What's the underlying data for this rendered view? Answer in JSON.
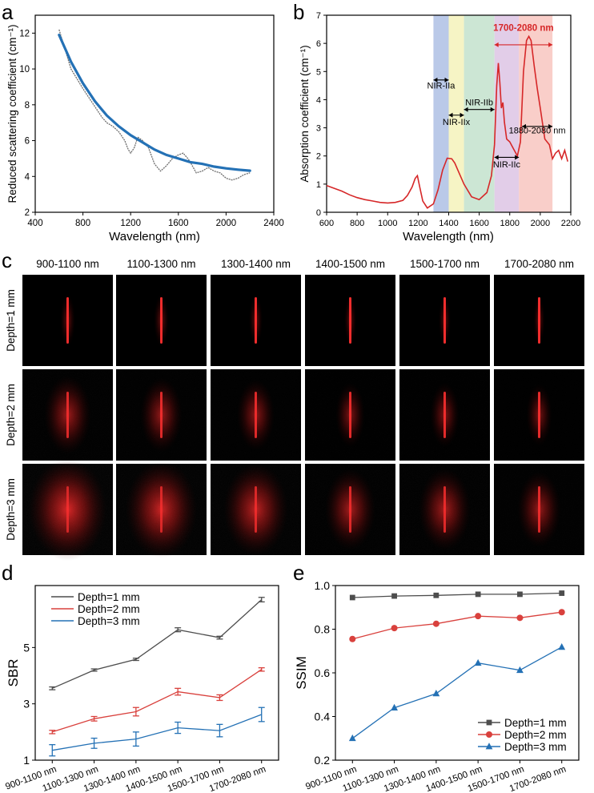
{
  "panel_labels": {
    "a": "a",
    "b": "b",
    "c": "c",
    "d": "d",
    "e": "e"
  },
  "chart_data": [
    {
      "id": "a",
      "type": "line",
      "title": "",
      "xlabel": "Wavelength (nm)",
      "ylabel": "Reduced scattering coefficient (cm⁻¹)",
      "xlim": [
        400,
        2400
      ],
      "ylim": [
        2,
        13
      ],
      "xticks": [
        "400",
        "800",
        "1200",
        "1600",
        "2000",
        "2400"
      ],
      "yticks": [
        "2",
        "4",
        "6",
        "8",
        "10",
        "12"
      ],
      "series": [
        {
          "name": "Measured",
          "color": "#6e6e6e",
          "x": [
            600,
            700,
            800,
            900,
            960,
            1000,
            1050,
            1100,
            1150,
            1180,
            1200,
            1230,
            1260,
            1300,
            1350,
            1400,
            1450,
            1500,
            1550,
            1600,
            1640,
            1680,
            1700,
            1750,
            1800,
            1850,
            1900,
            1950,
            2000,
            2050,
            2100,
            2150,
            2200
          ],
          "y": [
            12.2,
            10.0,
            8.9,
            7.9,
            7.3,
            7.0,
            6.8,
            6.5,
            6.0,
            5.5,
            5.3,
            5.6,
            6.2,
            6.0,
            5.6,
            4.7,
            4.3,
            4.6,
            5.0,
            5.2,
            5.3,
            5.0,
            4.8,
            4.2,
            4.3,
            4.5,
            4.3,
            4.2,
            3.9,
            3.8,
            3.9,
            4.1,
            4.2
          ]
        },
        {
          "name": "Fit",
          "color": "#2471b5",
          "x": [
            600,
            700,
            800,
            900,
            1000,
            1100,
            1200,
            1300,
            1400,
            1500,
            1600,
            1700,
            1800,
            1900,
            2000,
            2100,
            2200
          ],
          "y": [
            11.9,
            10.4,
            9.2,
            8.2,
            7.4,
            6.8,
            6.3,
            5.9,
            5.5,
            5.2,
            5.0,
            4.8,
            4.7,
            4.55,
            4.45,
            4.38,
            4.32
          ]
        }
      ]
    },
    {
      "id": "b",
      "type": "line",
      "title": "",
      "xlabel": "Wavelength (nm)",
      "ylabel": "Absorption coefficient (cm⁻¹)",
      "xlim": [
        600,
        2200
      ],
      "ylim": [
        0,
        7
      ],
      "xticks": [
        "600",
        "800",
        "1000",
        "1200",
        "1400",
        "1600",
        "1800",
        "2000",
        "2200"
      ],
      "yticks": [
        "0",
        "1",
        "2",
        "3",
        "4",
        "5",
        "6",
        "7"
      ],
      "bands": [
        {
          "from": 1300,
          "to": 1400,
          "color": "#b2c3e6"
        },
        {
          "from": 1400,
          "to": 1500,
          "color": "#f5f3bf"
        },
        {
          "from": 1500,
          "to": 1700,
          "color": "#c6e3cf"
        },
        {
          "from": 1700,
          "to": 1860,
          "color": "#dfc8e6"
        },
        {
          "from": 1860,
          "to": 2080,
          "color": "#f8c9c3"
        }
      ],
      "annotations": [
        {
          "text": "NIR-IIa",
          "x": 1350,
          "y": 4.4
        },
        {
          "text": "NIR-IIx",
          "x": 1450,
          "y": 3.1
        },
        {
          "text": "NIR-IIb",
          "x": 1600,
          "y": 3.8
        },
        {
          "text": "NIR-IIc",
          "x": 1780,
          "y": 1.6
        },
        {
          "text": "1700-2080 nm",
          "x": 1890,
          "y": 6.45
        },
        {
          "text": "1880-2080 nm",
          "x": 1980,
          "y": 2.8
        }
      ],
      "series": [
        {
          "name": "Absorption",
          "color": "#d62728",
          "x": [
            600,
            650,
            700,
            750,
            800,
            850,
            900,
            950,
            1000,
            1050,
            1100,
            1130,
            1160,
            1180,
            1195,
            1210,
            1230,
            1260,
            1300,
            1330,
            1360,
            1390,
            1420,
            1440,
            1460,
            1500,
            1550,
            1600,
            1650,
            1680,
            1700,
            1715,
            1725,
            1735,
            1745,
            1755,
            1765,
            1780,
            1800,
            1820,
            1850,
            1870,
            1890,
            1910,
            1925,
            1940,
            1960,
            1980,
            2000,
            2030,
            2060,
            2080,
            2100,
            2120,
            2140,
            2160,
            2180
          ],
          "y": [
            0.95,
            0.85,
            0.75,
            0.62,
            0.52,
            0.45,
            0.4,
            0.35,
            0.33,
            0.35,
            0.42,
            0.6,
            0.9,
            1.2,
            1.3,
            0.9,
            0.4,
            0.15,
            0.3,
            0.8,
            1.5,
            1.92,
            1.9,
            1.75,
            1.5,
            1.0,
            0.55,
            0.45,
            0.7,
            1.3,
            2.4,
            4.5,
            5.3,
            4.6,
            3.7,
            3.9,
            3.2,
            2.6,
            2.5,
            2.3,
            2.0,
            2.5,
            5.0,
            6.1,
            6.25,
            6.1,
            5.2,
            4.4,
            3.7,
            2.6,
            2.4,
            1.9,
            2.1,
            2.2,
            1.9,
            2.2,
            1.8
          ]
        }
      ]
    },
    {
      "id": "c",
      "type": "image-grid",
      "columns": [
        "900-1100 nm",
        "1100-1300 nm",
        "1300-1400 nm",
        "1400-1500 nm",
        "1500-1700 nm",
        "1700-2080 nm"
      ],
      "rows": [
        "Depth=1 mm",
        "Depth=2 mm",
        "Depth=3 mm"
      ],
      "blur_strength": [
        [
          0.1,
          0.1,
          0.08,
          0.06,
          0.06,
          0.05
        ],
        [
          0.55,
          0.48,
          0.42,
          0.3,
          0.3,
          0.25
        ],
        [
          1.0,
          0.9,
          0.8,
          0.6,
          0.62,
          0.5
        ]
      ]
    },
    {
      "id": "d",
      "type": "line",
      "title": "",
      "xlabel": "",
      "ylabel": "SBR",
      "categories": [
        "900-1100 nm",
        "1100-1300 nm",
        "1300-1400 nm",
        "1400-1500 nm",
        "1500-1700 nm",
        "1700-2080 nm"
      ],
      "ylim": [
        1,
        7.2
      ],
      "yticks": [
        "1",
        "3",
        "5"
      ],
      "legend": "top-left",
      "series": [
        {
          "name": "Depth=1 mm",
          "color": "#4d4d4d",
          "values": [
            3.55,
            4.2,
            4.58,
            5.63,
            5.35,
            6.7
          ],
          "errors": [
            0.05,
            0.04,
            0.04,
            0.07,
            0.05,
            0.08
          ]
        },
        {
          "name": "Depth=2 mm",
          "color": "#d9413d",
          "values": [
            2.0,
            2.47,
            2.72,
            3.43,
            3.22,
            4.22
          ],
          "errors": [
            0.06,
            0.08,
            0.15,
            0.12,
            0.1,
            0.06
          ]
        },
        {
          "name": "Depth=3 mm",
          "color": "#2471b5",
          "values": [
            1.35,
            1.6,
            1.75,
            2.15,
            2.05,
            2.62
          ],
          "errors": [
            0.2,
            0.18,
            0.25,
            0.2,
            0.22,
            0.25
          ]
        }
      ]
    },
    {
      "id": "e",
      "type": "line",
      "title": "",
      "xlabel": "",
      "ylabel": "SSIM",
      "categories": [
        "900-1100 nm",
        "1100-1300 nm",
        "1300-1400 nm",
        "1400-1500 nm",
        "1500-1700 nm",
        "1700-2080 nm"
      ],
      "ylim": [
        0.2,
        1.0
      ],
      "yticks": [
        "0.2",
        "0.4",
        "0.6",
        "0.8",
        "1.0"
      ],
      "legend": "bottom-right",
      "series": [
        {
          "name": "Depth=1 mm",
          "color": "#4d4d4d",
          "marker": "square",
          "values": [
            0.945,
            0.952,
            0.955,
            0.96,
            0.96,
            0.965
          ]
        },
        {
          "name": "Depth=2 mm",
          "color": "#d9413d",
          "marker": "circle",
          "values": [
            0.755,
            0.805,
            0.825,
            0.86,
            0.852,
            0.878
          ]
        },
        {
          "name": "Depth=3 mm",
          "color": "#2471b5",
          "marker": "triangle",
          "values": [
            0.3,
            0.44,
            0.505,
            0.645,
            0.612,
            0.718
          ]
        }
      ]
    }
  ]
}
